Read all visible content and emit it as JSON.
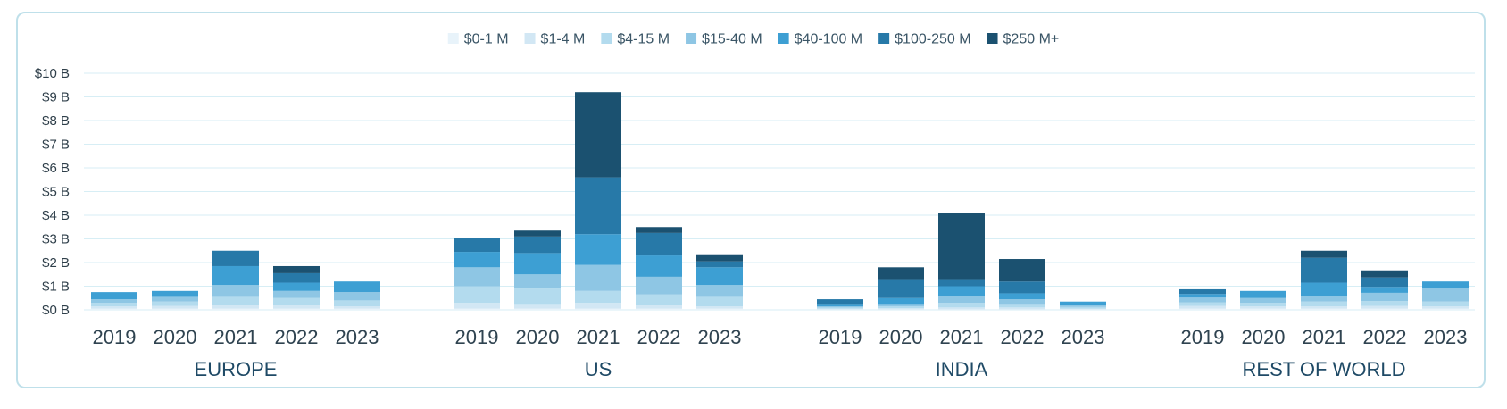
{
  "chart_data": {
    "type": "bar",
    "stacked": true,
    "title": "",
    "xlabel": "",
    "ylabel": "",
    "ylim": [
      0,
      10
    ],
    "y_ticks": [
      {
        "value": 0,
        "label": "$0 B"
      },
      {
        "value": 1,
        "label": "$1 B"
      },
      {
        "value": 2,
        "label": "$2 B"
      },
      {
        "value": 3,
        "label": "$3 B"
      },
      {
        "value": 4,
        "label": "$4 B"
      },
      {
        "value": 5,
        "label": "$5 B"
      },
      {
        "value": 6,
        "label": "$6 B"
      },
      {
        "value": 7,
        "label": "$7 B"
      },
      {
        "value": 8,
        "label": "$8 B"
      },
      {
        "value": 9,
        "label": "$9 B"
      },
      {
        "value": 10,
        "label": "$10 B"
      }
    ],
    "legend": {
      "position": "top",
      "series": [
        {
          "name": "$0-1 M",
          "color": "#e8f3fa"
        },
        {
          "name": "$1-4 M",
          "color": "#d2e7f4"
        },
        {
          "name": "$4-15 M",
          "color": "#b3dbee"
        },
        {
          "name": "$15-40 M",
          "color": "#8ec6e4"
        },
        {
          "name": "$40-100 M",
          "color": "#3d9fd3"
        },
        {
          "name": "$100-250 M",
          "color": "#2779a8"
        },
        {
          "name": "$250 M+",
          "color": "#1b5170"
        }
      ]
    },
    "categories": [
      "2019",
      "2020",
      "2021",
      "2022",
      "2023"
    ],
    "groups": [
      {
        "name": "EUROPE",
        "values": [
          [
            0.05,
            0.1,
            0.15,
            0.15,
            0.3,
            0.0,
            0.0
          ],
          [
            0.05,
            0.12,
            0.18,
            0.2,
            0.25,
            0.0,
            0.0
          ],
          [
            0.05,
            0.15,
            0.35,
            0.5,
            0.8,
            0.65,
            0.0
          ],
          [
            0.05,
            0.15,
            0.3,
            0.3,
            0.35,
            0.4,
            0.3
          ],
          [
            0.05,
            0.1,
            0.25,
            0.35,
            0.45,
            0.0,
            0.0
          ]
        ]
      },
      {
        "name": "US",
        "values": [
          [
            0.05,
            0.25,
            0.7,
            0.8,
            0.65,
            0.6,
            0.0
          ],
          [
            0.05,
            0.2,
            0.65,
            0.6,
            0.9,
            0.7,
            0.25
          ],
          [
            0.05,
            0.25,
            0.5,
            1.1,
            1.3,
            2.4,
            3.6
          ],
          [
            0.05,
            0.15,
            0.45,
            0.75,
            0.9,
            0.95,
            0.25
          ],
          [
            0.05,
            0.1,
            0.4,
            0.5,
            0.75,
            0.25,
            0.3
          ]
        ]
      },
      {
        "name": "INDIA",
        "values": [
          [
            0.02,
            0.03,
            0.05,
            0.05,
            0.1,
            0.2,
            0.0
          ],
          [
            0.02,
            0.05,
            0.08,
            0.1,
            0.25,
            0.8,
            0.5
          ],
          [
            0.02,
            0.08,
            0.2,
            0.3,
            0.4,
            0.3,
            2.8
          ],
          [
            0.02,
            0.08,
            0.15,
            0.2,
            0.25,
            0.5,
            0.95
          ],
          [
            0.02,
            0.03,
            0.07,
            0.08,
            0.15,
            0.0,
            0.0
          ]
        ]
      },
      {
        "name": "REST OF WORLD",
        "values": [
          [
            0.05,
            0.12,
            0.15,
            0.2,
            0.15,
            0.2,
            0.0
          ],
          [
            0.05,
            0.1,
            0.15,
            0.2,
            0.3,
            0.0,
            0.0
          ],
          [
            0.05,
            0.1,
            0.2,
            0.25,
            0.55,
            1.05,
            0.3
          ],
          [
            0.05,
            0.12,
            0.2,
            0.35,
            0.25,
            0.4,
            0.3
          ],
          [
            0.05,
            0.1,
            0.2,
            0.55,
            0.3,
            0.0,
            0.0
          ]
        ]
      }
    ]
  }
}
